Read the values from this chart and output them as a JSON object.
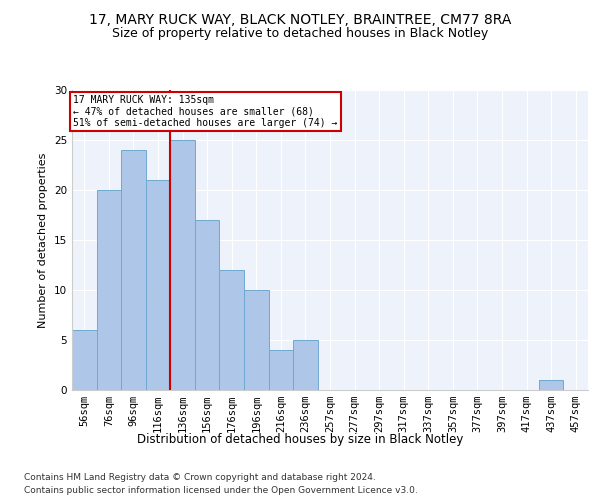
{
  "title1": "17, MARY RUCK WAY, BLACK NOTLEY, BRAINTREE, CM77 8RA",
  "title2": "Size of property relative to detached houses in Black Notley",
  "xlabel": "Distribution of detached houses by size in Black Notley",
  "ylabel": "Number of detached properties",
  "footnote1": "Contains HM Land Registry data © Crown copyright and database right 2024.",
  "footnote2": "Contains public sector information licensed under the Open Government Licence v3.0.",
  "bar_labels": [
    "56sqm",
    "76sqm",
    "96sqm",
    "116sqm",
    "136sqm",
    "156sqm",
    "176sqm",
    "196sqm",
    "216sqm",
    "236sqm",
    "257sqm",
    "277sqm",
    "297sqm",
    "317sqm",
    "337sqm",
    "357sqm",
    "377sqm",
    "397sqm",
    "417sqm",
    "437sqm",
    "457sqm"
  ],
  "bar_values": [
    6,
    20,
    24,
    21,
    25,
    17,
    12,
    10,
    4,
    5,
    0,
    0,
    0,
    0,
    0,
    0,
    0,
    0,
    0,
    1,
    0
  ],
  "bar_color": "#aec6e8",
  "bar_edgecolor": "#6fa8d0",
  "ref_line_x": 4,
  "annotation_line1": "17 MARY RUCK WAY: 135sqm",
  "annotation_line2": "← 47% of detached houses are smaller (68)",
  "annotation_line3": "51% of semi-detached houses are larger (74) →",
  "annotation_box_color": "#ffffff",
  "annotation_box_edgecolor": "#cc0000",
  "ref_line_color": "#cc0000",
  "bg_color": "#eef3fb",
  "ylim": [
    0,
    30
  ],
  "yticks": [
    0,
    5,
    10,
    15,
    20,
    25,
    30
  ],
  "title1_fontsize": 10,
  "title2_fontsize": 9,
  "xlabel_fontsize": 8.5,
  "ylabel_fontsize": 8,
  "tick_fontsize": 7.5,
  "footnote_fontsize": 6.5
}
